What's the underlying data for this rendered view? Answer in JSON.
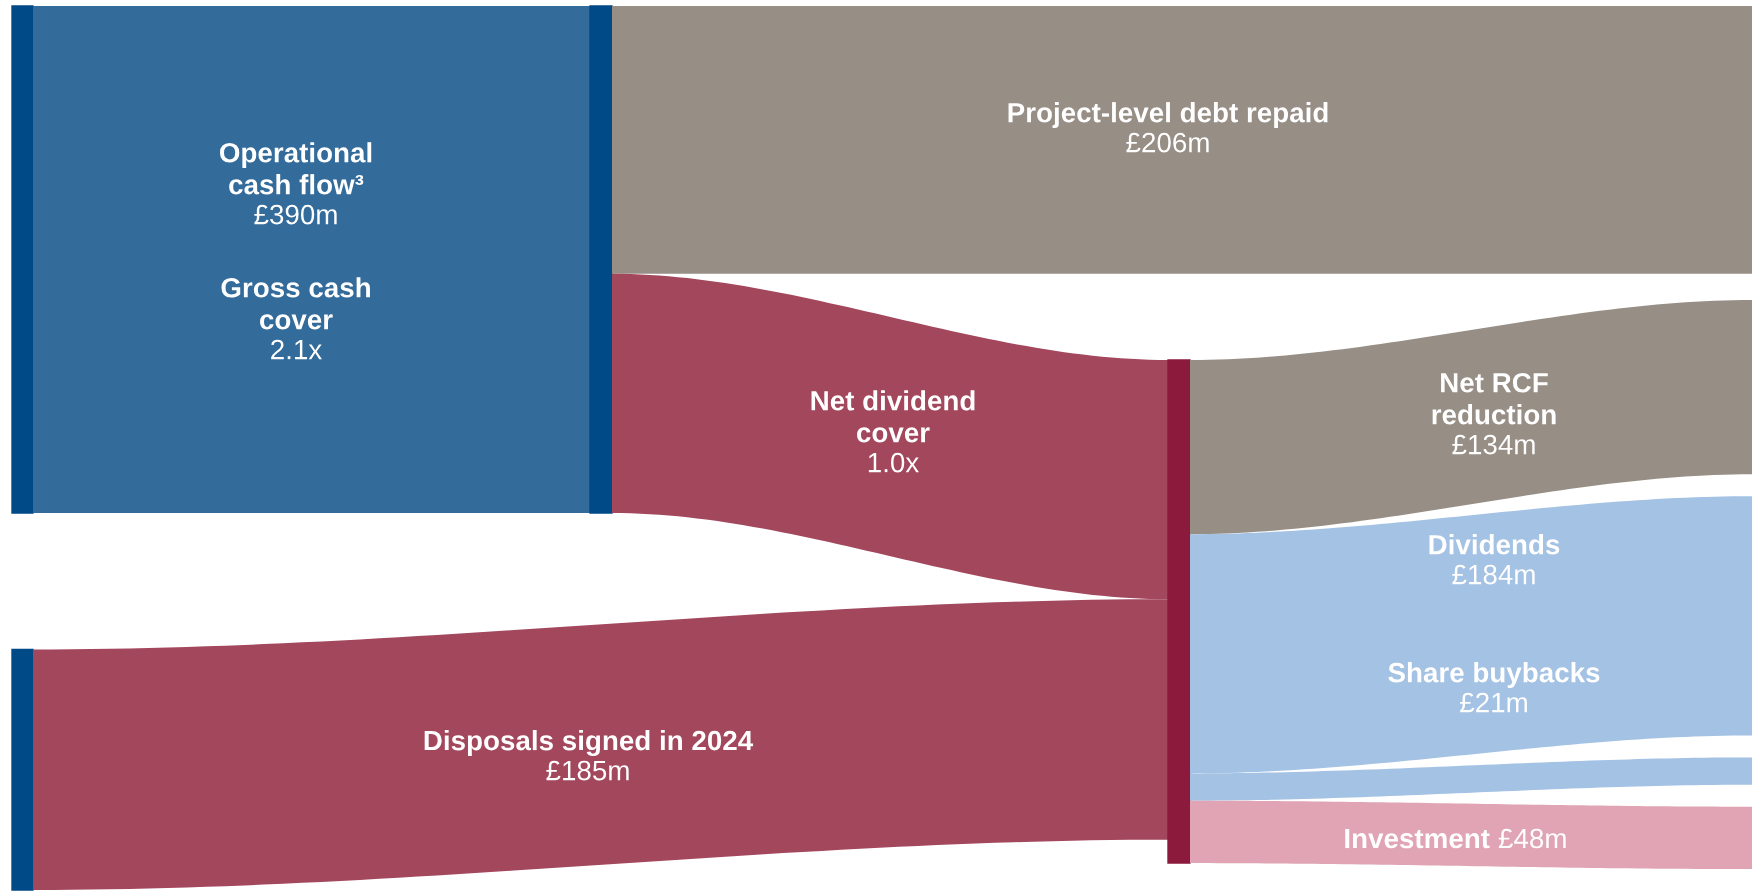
{
  "chart_data": {
    "type": "other",
    "categories": [
      "Operational cash flow³",
      "Disposals signed in 2024",
      "Project-level debt repaid",
      "Net dividend cover",
      "Net RCF reduction",
      "Dividends",
      "Share buybacks",
      "Investment"
    ],
    "values": [
      390,
      185,
      206,
      null,
      134,
      184,
      21,
      48
    ],
    "value_labels": [
      "£390m",
      "£185m",
      "£206m",
      "1.0x",
      "£134m",
      "£184m",
      "£21m",
      "£48m"
    ],
    "colors": [
      "#336b9b",
      "#a3475d",
      "#978e86",
      "#a3475d",
      "#978e86",
      "#a4c2e4",
      "#a4c2e4",
      "#e0a4b5"
    ],
    "annotations": [
      "Gross cash cover",
      "2.1x"
    ]
  }
}
